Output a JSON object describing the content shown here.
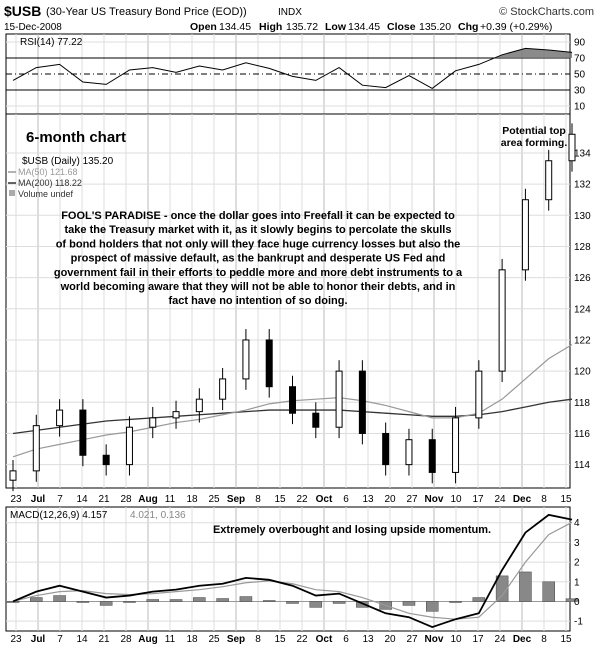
{
  "header": {
    "symbol": "$USB",
    "description": "(30-Year US Treasury Bond Price (EOD))",
    "exchange": "INDX",
    "source": "© StockCharts.com",
    "date": "15-Dec-2008",
    "open_label": "Open",
    "open": "134.45",
    "high_label": "High",
    "high": "135.72",
    "low_label": "Low",
    "low": "134.45",
    "close_label": "Close",
    "close": "135.20",
    "chg_label": "Chg",
    "chg": "+0.39 (+0.29%)"
  },
  "rsi_panel": {
    "legend": "RSI(14) 77.22",
    "ticks": [
      90,
      70,
      50,
      30,
      10
    ]
  },
  "price_panel": {
    "title_annotation": "6-month chart",
    "top_annotation": "Potential top area forming.",
    "legend_main": "$USB (Daily) 135.20",
    "legend_ma50": "MA(50) 121.68",
    "legend_ma200": "MA(200) 118.22",
    "legend_volume": "Volume undef",
    "commentary": "FOOL'S PARADISE - once the dollar goes into Freefall it can be expected to take the Treasury market with it, as it slowly begins to percolate the skulls of bond holders that not only will they face huge currency losses but also the prospect of massive default, as the bankrupt and desperate US Fed and government fail in their efforts to peddle more and more debt instruments to a world becoming aware that they will not be able to honor their debts, and in fact have no intention of so doing.",
    "ticks": [
      114,
      116,
      118,
      120,
      122,
      124,
      126,
      128,
      130,
      132,
      134
    ]
  },
  "macd_panel": {
    "legend_main": "MACD(12,26,9) 4.157",
    "legend_rest": "4.021, 0.136",
    "annotation": "Extremely overbought and losing upside momentum.",
    "ticks": [
      4,
      3,
      2,
      1,
      0,
      -1
    ]
  },
  "xaxis_labels": [
    {
      "label": "23",
      "bold": false
    },
    {
      "label": "Jul",
      "bold": true
    },
    {
      "label": "7",
      "bold": false
    },
    {
      "label": "14",
      "bold": false
    },
    {
      "label": "21",
      "bold": false
    },
    {
      "label": "28",
      "bold": false
    },
    {
      "label": "Aug",
      "bold": true
    },
    {
      "label": "11",
      "bold": false
    },
    {
      "label": "18",
      "bold": false
    },
    {
      "label": "25",
      "bold": false
    },
    {
      "label": "Sep",
      "bold": true
    },
    {
      "label": "8",
      "bold": false
    },
    {
      "label": "15",
      "bold": false
    },
    {
      "label": "22",
      "bold": false
    },
    {
      "label": "Oct",
      "bold": true
    },
    {
      "label": "6",
      "bold": false
    },
    {
      "label": "13",
      "bold": false
    },
    {
      "label": "20",
      "bold": false
    },
    {
      "label": "27",
      "bold": false
    },
    {
      "label": "Nov",
      "bold": true
    },
    {
      "label": "10",
      "bold": false
    },
    {
      "label": "17",
      "bold": false
    },
    {
      "label": "24",
      "bold": false
    },
    {
      "label": "Dec",
      "bold": true
    },
    {
      "label": "8",
      "bold": false
    },
    {
      "label": "15",
      "bold": false
    }
  ],
  "colors": {
    "ma50": "#999999",
    "ma200": "#333333",
    "histogram": "#888888",
    "signal": "#888888",
    "rsi_fill": "#777777"
  },
  "chart_data": [
    {
      "type": "candlestick",
      "name": "$USB (Daily)",
      "ylim": [
        112.5,
        136.5
      ],
      "x": [
        "Jun 23",
        "Jul 7",
        "Jul 14",
        "Jul 21",
        "Jul 28",
        "Aug 4",
        "Aug 11",
        "Aug 18",
        "Aug 25",
        "Sep 1",
        "Sep 8",
        "Sep 15",
        "Sep 22",
        "Sep 29",
        "Oct 6",
        "Oct 13",
        "Oct 20",
        "Oct 27",
        "Nov 3",
        "Nov 10",
        "Nov 17",
        "Nov 24",
        "Dec 1",
        "Dec 8",
        "Dec 15"
      ],
      "close": [
        113.6,
        116.5,
        117.5,
        114.6,
        114.0,
        116.4,
        117.0,
        117.4,
        118.2,
        119.5,
        122.0,
        119.0,
        117.3,
        116.4,
        120.0,
        116.0,
        114.0,
        115.6,
        113.5,
        117.0,
        120.0,
        126.5,
        131.0,
        133.5,
        135.2
      ],
      "ma50": [
        114.5,
        115.0,
        115.3,
        115.6,
        115.9,
        116.1,
        116.4,
        116.7,
        116.9,
        117.2,
        117.5,
        117.9,
        118.1,
        118.2,
        118.3,
        118.1,
        117.8,
        117.4,
        117.0,
        117.0,
        117.3,
        118.2,
        119.5,
        120.8,
        121.7
      ],
      "ma200": [
        116.0,
        116.2,
        116.4,
        116.6,
        116.8,
        116.9,
        117.0,
        117.1,
        117.2,
        117.3,
        117.4,
        117.5,
        117.5,
        117.5,
        117.5,
        117.4,
        117.3,
        117.2,
        117.1,
        117.1,
        117.2,
        117.4,
        117.7,
        118.0,
        118.2
      ]
    },
    {
      "type": "line",
      "name": "RSI(14)",
      "ylim": [
        0,
        100
      ],
      "x": [
        "Jun 23",
        "Jul 7",
        "Jul 14",
        "Jul 21",
        "Jul 28",
        "Aug 4",
        "Aug 11",
        "Aug 18",
        "Aug 25",
        "Sep 1",
        "Sep 8",
        "Sep 15",
        "Sep 22",
        "Sep 29",
        "Oct 6",
        "Oct 13",
        "Oct 20",
        "Oct 27",
        "Nov 3",
        "Nov 10",
        "Nov 17",
        "Nov 24",
        "Dec 1",
        "Dec 8",
        "Dec 15"
      ],
      "values": [
        42,
        58,
        62,
        40,
        37,
        55,
        58,
        52,
        60,
        55,
        64,
        57,
        47,
        42,
        58,
        36,
        33,
        48,
        32,
        54,
        62,
        74,
        82,
        80,
        77
      ]
    },
    {
      "type": "line",
      "name": "MACD(12,26,9)",
      "ylim": [
        -1.5,
        4.8
      ],
      "x": [
        "Jun 23",
        "Jul 7",
        "Jul 14",
        "Jul 21",
        "Jul 28",
        "Aug 4",
        "Aug 11",
        "Aug 18",
        "Aug 25",
        "Sep 1",
        "Sep 8",
        "Sep 15",
        "Sep 22",
        "Sep 29",
        "Oct 6",
        "Oct 13",
        "Oct 20",
        "Oct 27",
        "Nov 3",
        "Nov 10",
        "Nov 17",
        "Nov 24",
        "Dec 1",
        "Dec 8",
        "Dec 15"
      ],
      "macd": [
        0.0,
        0.5,
        0.8,
        0.5,
        0.2,
        0.3,
        0.5,
        0.6,
        0.8,
        0.9,
        1.2,
        1.1,
        0.8,
        0.3,
        0.4,
        -0.1,
        -0.6,
        -0.8,
        -1.3,
        -0.9,
        -0.6,
        1.6,
        3.5,
        4.4,
        4.157
      ],
      "signal": [
        0.0,
        0.3,
        0.5,
        0.55,
        0.4,
        0.35,
        0.4,
        0.5,
        0.6,
        0.75,
        0.95,
        1.05,
        0.9,
        0.6,
        0.5,
        0.2,
        -0.2,
        -0.6,
        -0.8,
        -0.9,
        -0.8,
        0.3,
        2.0,
        3.4,
        4.021
      ]
    }
  ]
}
